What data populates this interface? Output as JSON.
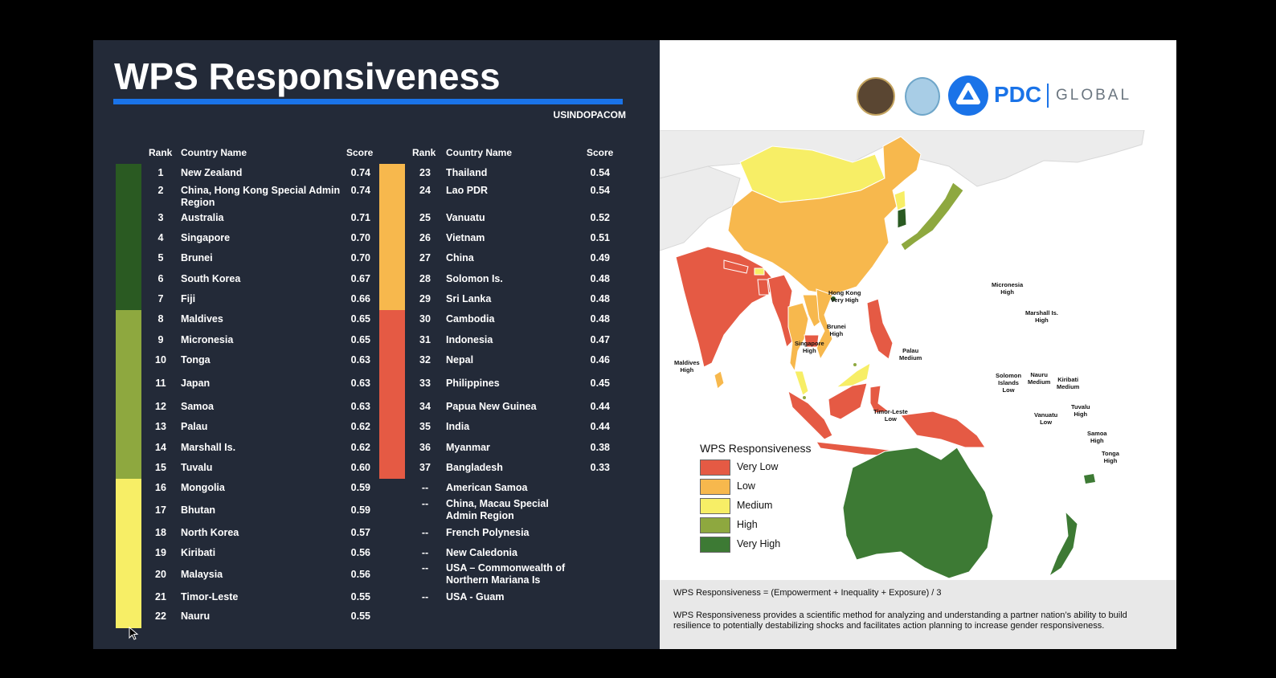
{
  "title": "WPS Responsiveness",
  "org": "USINDOPACOM",
  "headers": {
    "rank": "Rank",
    "country": "Country Name",
    "score": "Score"
  },
  "colors": {
    "very_high": "#2a5a22",
    "high": "#8ea83f",
    "medium": "#f7ee66",
    "low": "#f7b84d",
    "very_low": "#e55a44",
    "accent": "#1a73e8",
    "panel": "#232a38"
  },
  "left_column": [
    {
      "rank": "1",
      "country": "New Zealand",
      "score": "0.74"
    },
    {
      "rank": "2",
      "country": "China, Hong Kong Special Admin Region",
      "score": "0.74"
    },
    {
      "rank": "3",
      "country": "Australia",
      "score": "0.71"
    },
    {
      "rank": "4",
      "country": "Singapore",
      "score": "0.70"
    },
    {
      "rank": "5",
      "country": "Brunei",
      "score": "0.70"
    },
    {
      "rank": "6",
      "country": "South Korea",
      "score": "0.67"
    },
    {
      "rank": "7",
      "country": "Fiji",
      "score": "0.66"
    },
    {
      "rank": "8",
      "country": "Maldives",
      "score": "0.65"
    },
    {
      "rank": "9",
      "country": "Micronesia",
      "score": "0.65"
    },
    {
      "rank": "10",
      "country": "Tonga",
      "score": "0.63"
    },
    {
      "rank": "11",
      "country": "Japan",
      "score": "0.63"
    },
    {
      "rank": "12",
      "country": "Samoa",
      "score": "0.63"
    },
    {
      "rank": "13",
      "country": "Palau",
      "score": "0.62"
    },
    {
      "rank": "14",
      "country": "Marshall Is.",
      "score": "0.62"
    },
    {
      "rank": "15",
      "country": "Tuvalu",
      "score": "0.60"
    },
    {
      "rank": "16",
      "country": "Mongolia",
      "score": "0.59"
    },
    {
      "rank": "17",
      "country": "Bhutan",
      "score": "0.59"
    },
    {
      "rank": "18",
      "country": "North Korea",
      "score": "0.57"
    },
    {
      "rank": "19",
      "country": "Kiribati",
      "score": "0.56"
    },
    {
      "rank": "20",
      "country": "Malaysia",
      "score": "0.56"
    },
    {
      "rank": "21",
      "country": "Timor-Leste",
      "score": "0.55"
    },
    {
      "rank": "22",
      "country": "Nauru",
      "score": "0.55"
    }
  ],
  "right_column": [
    {
      "rank": "23",
      "country": "Thailand",
      "score": "0.54"
    },
    {
      "rank": "24",
      "country": "Lao PDR",
      "score": "0.54"
    },
    {
      "rank": "25",
      "country": "Vanuatu",
      "score": "0.52"
    },
    {
      "rank": "26",
      "country": "Vietnam",
      "score": "0.51"
    },
    {
      "rank": "27",
      "country": "China",
      "score": "0.49"
    },
    {
      "rank": "28",
      "country": "Solomon Is.",
      "score": "0.48"
    },
    {
      "rank": "29",
      "country": "Sri Lanka",
      "score": "0.48"
    },
    {
      "rank": "30",
      "country": "Cambodia",
      "score": "0.48"
    },
    {
      "rank": "31",
      "country": "Indonesia",
      "score": "0.47"
    },
    {
      "rank": "32",
      "country": "Nepal",
      "score": "0.46"
    },
    {
      "rank": "33",
      "country": "Philippines",
      "score": "0.45"
    },
    {
      "rank": "34",
      "country": "Papua New Guinea",
      "score": "0.44"
    },
    {
      "rank": "35",
      "country": "India",
      "score": "0.44"
    },
    {
      "rank": "36",
      "country": "Myanmar",
      "score": "0.38"
    },
    {
      "rank": "37",
      "country": "Bangladesh",
      "score": "0.33"
    },
    {
      "rank": "--",
      "country": "American Samoa",
      "score": ""
    },
    {
      "rank": "--",
      "country": "China, Macau Special Admin Region",
      "score": ""
    },
    {
      "rank": "--",
      "country": "French Polynesia",
      "score": ""
    },
    {
      "rank": "--",
      "country": "New Caledonia",
      "score": ""
    },
    {
      "rank": "--",
      "country": "USA – Commonwealth of Northern Mariana Is",
      "score": ""
    },
    {
      "rank": "--",
      "country": "USA  - Guam",
      "score": ""
    }
  ],
  "logo": {
    "name": "PDC",
    "suffix": "GLOBAL"
  },
  "legend": {
    "title": "WPS Responsiveness",
    "items": [
      "Very Low",
      "Low",
      "Medium",
      "High",
      "Very High"
    ]
  },
  "map_labels": [
    "Hong Kong\nVery High",
    "Micronesia\nHigh",
    "Marshall Is.\nHigh",
    "Brunei\nHigh",
    "Singapore\nHigh",
    "Palau\nMedium",
    "Maldives\nHigh",
    "Solomon\nIslands\nLow",
    "Nauru\nMedium",
    "Kiribati\nMedium",
    "Tuvalu\nHigh",
    "Vanuatu\nLow",
    "Timor-Leste\nLow",
    "Samoa\nHigh",
    "Tonga\nHigh"
  ],
  "formula": "WPS Responsiveness = (Empowerment + Inequality + Exposure) / 3",
  "description": "WPS Responsiveness provides a scientific method for analyzing and understanding  a partner nation’s ability to build resilience to potentially destabilizing shocks and facilitates action planning to increase gender responsiveness."
}
